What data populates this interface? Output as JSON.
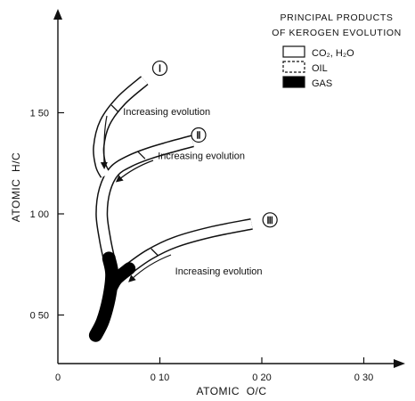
{
  "chart_data": {
    "type": "line",
    "xlabel": "ATOMIC  O/C",
    "ylabel": "ATOMIC  H/C",
    "xlim": [
      0,
      0.35
    ],
    "ylim": [
      0.3,
      1.85
    ],
    "x_ticks": [
      {
        "value": 0,
        "label": "0"
      },
      {
        "value": 0.1,
        "label": "0 10"
      },
      {
        "value": 0.2,
        "label": "0 20"
      },
      {
        "value": 0.3,
        "label": "0 30"
      }
    ],
    "y_ticks": [
      {
        "value": 0.5,
        "label": "0 50"
      },
      {
        "value": 1.0,
        "label": "1 00"
      },
      {
        "value": 1.5,
        "label": "1 50"
      }
    ],
    "grid": false,
    "legend": {
      "title_line1": "PRINCIPAL PRODUCTS",
      "title_line2": "OF KEROGEN EVOLUTION",
      "placement": "top-right",
      "items": [
        {
          "label": "CO₂, H₂O",
          "fill": "#ffffff",
          "pattern": "open"
        },
        {
          "label": "OIL",
          "fill": "#ffffff",
          "pattern": "dashed"
        },
        {
          "label": "GAS",
          "fill": "#000000",
          "pattern": "solid"
        }
      ]
    },
    "series": [
      {
        "name": "I",
        "label": "Ⅰ",
        "points": [
          [
            0.085,
            1.66
          ],
          [
            0.062,
            1.56
          ],
          [
            0.046,
            1.45
          ],
          [
            0.04,
            1.33
          ],
          [
            0.042,
            1.24
          ],
          [
            0.047,
            1.19
          ]
        ]
      },
      {
        "name": "II",
        "label": "Ⅱ",
        "points": [
          [
            0.132,
            1.36
          ],
          [
            0.11,
            1.33
          ],
          [
            0.09,
            1.3
          ],
          [
            0.07,
            1.26
          ],
          [
            0.055,
            1.21
          ],
          [
            0.046,
            1.12
          ],
          [
            0.043,
            1.0
          ],
          [
            0.046,
            0.88
          ],
          [
            0.05,
            0.78
          ],
          [
            0.053,
            0.7
          ],
          [
            0.05,
            0.58
          ],
          [
            0.044,
            0.47
          ],
          [
            0.037,
            0.4
          ]
        ]
      },
      {
        "name": "III",
        "label": "Ⅲ",
        "points": [
          [
            0.19,
            0.95
          ],
          [
            0.15,
            0.91
          ],
          [
            0.115,
            0.86
          ],
          [
            0.09,
            0.8
          ],
          [
            0.07,
            0.73
          ],
          [
            0.058,
            0.68
          ],
          [
            0.053,
            0.64
          ]
        ]
      }
    ],
    "gas_segments": [
      {
        "series": "II",
        "from_y": 0.8
      },
      {
        "series": "III",
        "from_x": 0.078
      }
    ],
    "annotations": [
      {
        "text": "Increasing evolution",
        "x": 0.064,
        "y": 1.49
      },
      {
        "text": "Increasing evolution",
        "x": 0.098,
        "y": 1.27
      },
      {
        "text": "Increasing evolution",
        "x": 0.115,
        "y": 0.7
      }
    ]
  }
}
